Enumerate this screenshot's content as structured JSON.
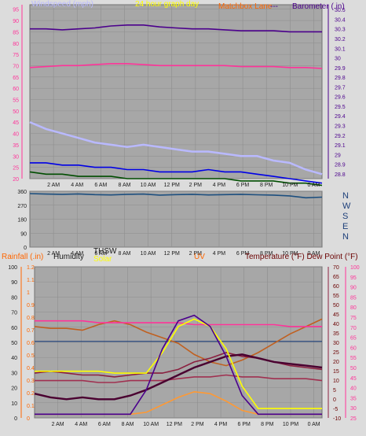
{
  "colors": {
    "background": "#dcdcdc",
    "plot_bg": "#a7a7a7",
    "grid": "#8e8e8e",
    "pink": "#ff3399",
    "purple": "#4b008c",
    "blue_light": "#b9b9ff",
    "blue": "#0000e6",
    "green": "#004d00",
    "navy": "#1d4f7f",
    "brown": "#c06020",
    "maroon": "#8b2040",
    "darkpurple": "#4a0030",
    "yellow": "#ffff00",
    "orange": "#ff9933"
  },
  "chart_data": [
    {
      "type": "line",
      "title": "24 hour graph day",
      "left_axis_label": "Windspeed (mph)",
      "right_axis_label": "Barometer (.in)",
      "center_label": "Matchbox Lane",
      "center_dash": "---",
      "x_ticks": [
        "2 AM",
        "4 AM",
        "6 AM",
        "8 AM",
        "10 AM",
        "12 PM",
        "2 PM",
        "4 PM",
        "6 PM",
        "8 PM",
        "10 PM",
        "0 AM"
      ],
      "left_ticks": [
        "95",
        "90",
        "85",
        "80",
        "75",
        "70",
        "65",
        "60",
        "55",
        "50",
        "45",
        "40",
        "35",
        "30",
        "25",
        "20"
      ],
      "left_range": [
        20,
        97
      ],
      "right_ticks": [
        "30.5",
        "30.4",
        "30.3",
        "30.2",
        "30.1",
        "30",
        "29.9",
        "29.8",
        "29.7",
        "29.6",
        "29.5",
        "29.4",
        "29.3",
        "29.2",
        "29.1",
        "29",
        "28.9",
        "28.8"
      ],
      "right_range": [
        28.75,
        30.55
      ],
      "series": [
        {
          "key": "barometer",
          "axis": "right",
          "color": "#4b008c",
          "values": [
            30.3,
            30.3,
            30.29,
            30.3,
            30.31,
            30.33,
            30.34,
            30.34,
            30.32,
            30.31,
            30.3,
            30.3,
            30.29,
            30.28,
            30.28,
            30.28,
            30.27,
            30.27,
            30.27
          ]
        },
        {
          "key": "pink_line",
          "axis": "right",
          "color": "#ff3399",
          "values": [
            29.9,
            29.91,
            29.92,
            29.92,
            29.93,
            29.94,
            29.94,
            29.93,
            29.92,
            29.92,
            29.92,
            29.92,
            29.92,
            29.91,
            29.91,
            29.91,
            29.9,
            29.9,
            29.89
          ]
        },
        {
          "key": "gust",
          "axis": "left",
          "color": "#b9b9ff",
          "values": [
            45,
            42,
            40,
            38,
            36,
            35,
            34,
            35,
            34,
            33,
            32,
            32,
            31,
            30,
            30,
            28,
            27,
            24,
            22
          ]
        },
        {
          "key": "wind_avg",
          "axis": "left",
          "color": "#0000e6",
          "values": [
            27,
            27,
            26,
            26,
            25,
            25,
            24,
            24,
            23,
            23,
            23,
            24,
            23,
            23,
            22,
            21,
            20,
            19,
            18
          ]
        },
        {
          "key": "wind",
          "axis": "left",
          "color": "#004d00",
          "values": [
            23,
            22,
            22,
            21,
            21,
            21,
            20,
            20,
            20,
            20,
            20,
            20,
            20,
            19,
            19,
            19,
            18,
            18,
            17
          ]
        }
      ]
    },
    {
      "type": "line",
      "x_ticks": [
        "2 AM",
        "4 AM",
        "6 AM",
        "8 AM",
        "10 AM",
        "12 PM",
        "2 PM",
        "4 PM",
        "6 PM",
        "8 PM",
        "10 PM",
        "0 AM"
      ],
      "left_ticks": [
        "360",
        "270",
        "180",
        "90",
        "0"
      ],
      "left_range": [
        0,
        360
      ],
      "right_labels": [
        "N",
        "W",
        "S",
        "E",
        "N"
      ],
      "series": [
        {
          "key": "wind_direction",
          "color": "#1d4f7f",
          "values": [
            345,
            342,
            340,
            343,
            338,
            336,
            340,
            342,
            335,
            338,
            340,
            336,
            338,
            340,
            337,
            335,
            330,
            318,
            322
          ]
        }
      ]
    },
    {
      "type": "line",
      "labels": {
        "rainfall": "Rainfall (.in)",
        "humidity": "Humidity",
        "thsw": "THSW",
        "solar": "Solar",
        "uv": "UV",
        "temperature": "Temperature (°F) Dew Point (°F)"
      },
      "x_ticks": [
        "2 AM",
        "4 AM",
        "6 AM",
        "8 AM",
        "10 AM",
        "12 PM",
        "2 PM",
        "4 PM",
        "6 PM",
        "8 PM",
        "10 PM",
        "0 AM"
      ],
      "rain_ticks": [
        "100",
        "90",
        "80",
        "70",
        "60",
        "50",
        "40",
        "30",
        "20",
        "10",
        "0"
      ],
      "uv_ticks": [
        "1.2",
        "1.1",
        "1",
        "0.9",
        "0.8",
        "0.7",
        "0.6",
        "0.5",
        "0.4",
        "0.3",
        "0.2",
        "0.1",
        "0"
      ],
      "temp_ticks": [
        "70",
        "65",
        "60",
        "55",
        "50",
        "45",
        "40",
        "35",
        "30",
        "25",
        "20",
        "15",
        "10",
        "5",
        "0",
        "-5",
        "-10"
      ],
      "humidity_ticks": [
        "100",
        "95",
        "90",
        "85",
        "80",
        "75",
        "70",
        "65",
        "60",
        "55",
        "50",
        "45",
        "40",
        "35",
        "30",
        "25"
      ],
      "humidity_range": [
        23,
        104
      ],
      "series": [
        {
          "key": "humidity",
          "color": "#c06020",
          "values": [
            72,
            71,
            71,
            70,
            73,
            75,
            73,
            69,
            66,
            63,
            57,
            53,
            51,
            54,
            58,
            63,
            68,
            72,
            76
          ]
        },
        {
          "key": "pink_line",
          "color": "#ff3399",
          "values": [
            75,
            75,
            75,
            75,
            74,
            74,
            74,
            74,
            74,
            74,
            73,
            73,
            73,
            73,
            73,
            73,
            72,
            72,
            72
          ]
        },
        {
          "key": "temperature",
          "color": "#8b2040",
          "values": [
            47,
            48,
            47,
            46,
            46,
            45,
            46,
            47,
            47,
            49,
            53,
            55,
            58,
            56,
            55,
            53,
            51,
            50,
            49
          ]
        },
        {
          "key": "dew_point",
          "color": "#a03050",
          "values": [
            43,
            43,
            43,
            43,
            42,
            42,
            43,
            43,
            43,
            44,
            45,
            45,
            46,
            45,
            45,
            44,
            44,
            44,
            43
          ]
        },
        {
          "key": "thsw",
          "color": "#4a0030",
          "values": [
            36,
            34,
            33,
            34,
            33,
            33,
            35,
            38,
            42,
            46,
            50,
            53,
            56,
            57,
            55,
            53,
            52,
            51,
            50
          ]
        },
        {
          "key": "solar",
          "color": "#ffff00",
          "values": [
            48,
            48,
            48,
            48,
            48,
            47,
            47,
            47,
            58,
            72,
            76,
            72,
            60,
            40,
            28,
            28,
            28,
            28,
            28
          ]
        },
        {
          "key": "uv",
          "color": "#ff9933",
          "values": [
            25,
            25,
            25,
            25,
            25,
            25,
            25,
            26,
            30,
            34,
            37,
            36,
            32,
            27,
            25,
            25,
            25,
            25,
            25
          ]
        },
        {
          "key": "solar_curve",
          "color": "#4b008c",
          "values": [
            25,
            25,
            25,
            25,
            25,
            25,
            25,
            38,
            60,
            75,
            78,
            72,
            56,
            35,
            25,
            25,
            25,
            25,
            25
          ]
        }
      ],
      "reference_line": {
        "key": "humidity_ref",
        "color": "#1d3f7a",
        "value": 64
      }
    }
  ]
}
